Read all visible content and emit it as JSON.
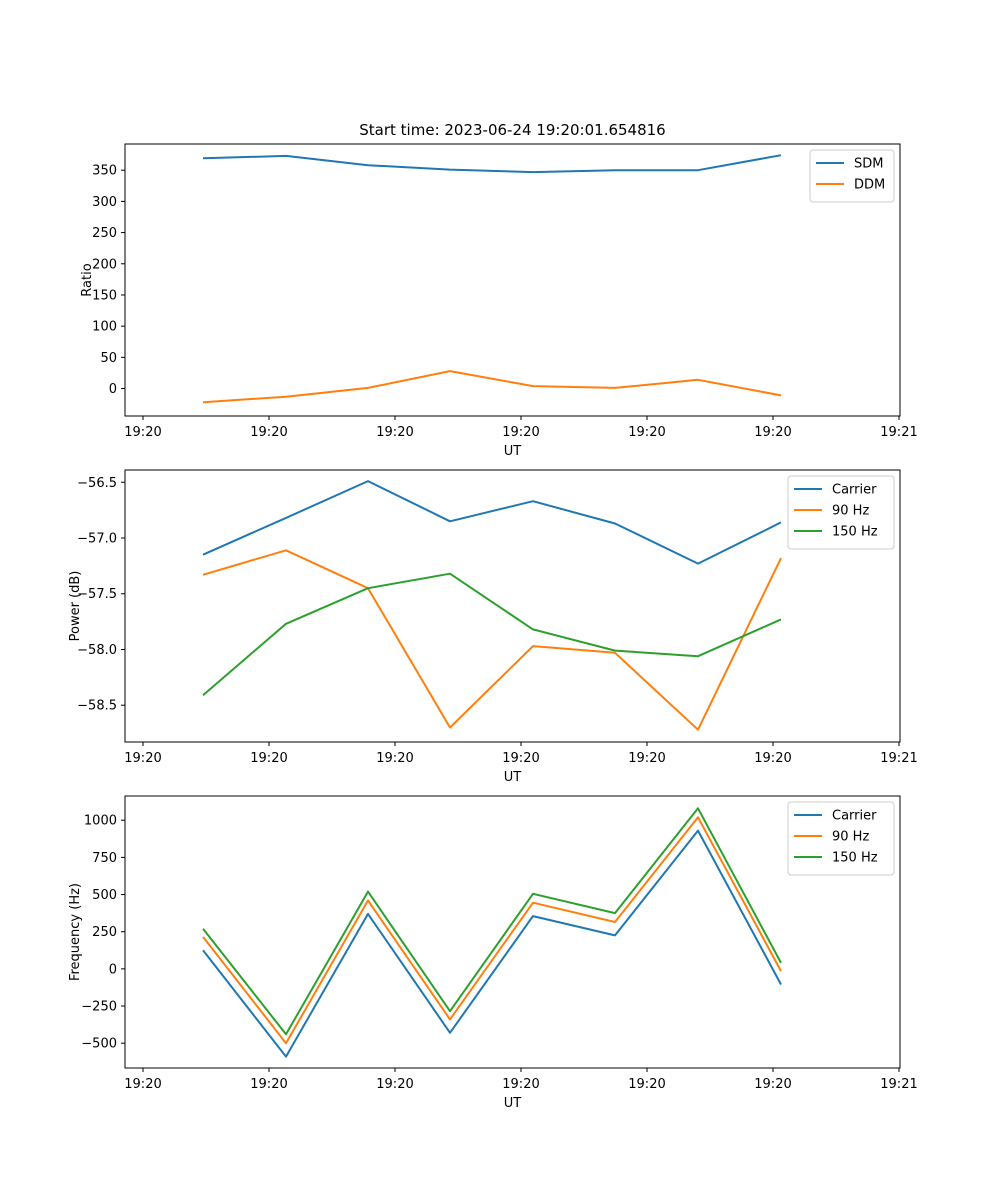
{
  "title": "Start time: 2023-06-24 19:20:01.654816",
  "chart_data": [
    {
      "type": "line",
      "xlabel": "UT",
      "ylabel": "Ratio",
      "x_tick_labels": [
        "19:20",
        "19:20",
        "19:20",
        "19:20",
        "19:20",
        "19:20",
        "19:21"
      ],
      "y_ticks": [
        0,
        50,
        100,
        150,
        200,
        250,
        300,
        350
      ],
      "ylim": [
        -44,
        392
      ],
      "legend_position": "top-right",
      "series": [
        {
          "name": "SDM",
          "color": "#1f77b4",
          "values": [
            369,
            373,
            358,
            351,
            347,
            350,
            350,
            374
          ]
        },
        {
          "name": "DDM",
          "color": "#ff7f0e",
          "values": [
            -22,
            -13,
            1,
            28,
            4,
            1,
            14,
            -11
          ]
        }
      ]
    },
    {
      "type": "line",
      "xlabel": "UT",
      "ylabel": "Power (dB)",
      "x_tick_labels": [
        "19:20",
        "19:20",
        "19:20",
        "19:20",
        "19:20",
        "19:20",
        "19:21"
      ],
      "y_ticks": [
        -58.5,
        -58.0,
        -57.5,
        -57.0,
        -56.5
      ],
      "y_tick_labels": [
        "−58.5",
        "−58.0",
        "−57.5",
        "−57.0",
        "−56.5"
      ],
      "ylim": [
        -58.83,
        -56.39
      ],
      "legend_position": "top-right",
      "series": [
        {
          "name": "Carrier",
          "color": "#1f77b4",
          "values": [
            -57.15,
            -56.82,
            -56.49,
            -56.85,
            -56.67,
            -56.87,
            -57.23,
            -56.86
          ]
        },
        {
          "name": "90 Hz",
          "color": "#ff7f0e",
          "values": [
            -57.33,
            -57.11,
            -57.45,
            -58.7,
            -57.97,
            -58.03,
            -58.72,
            -57.18
          ]
        },
        {
          "name": "150 Hz",
          "color": "#2ca02c",
          "values": [
            -58.41,
            -57.77,
            -57.45,
            -57.32,
            -57.82,
            -58.01,
            -58.06,
            -57.73
          ]
        }
      ]
    },
    {
      "type": "line",
      "xlabel": "UT",
      "ylabel": "Frequency (Hz)",
      "x_tick_labels": [
        "19:20",
        "19:20",
        "19:20",
        "19:20",
        "19:20",
        "19:20",
        "19:21"
      ],
      "y_ticks": [
        -500,
        -250,
        0,
        250,
        500,
        750,
        1000
      ],
      "y_tick_labels": [
        "−500",
        "−250",
        "0",
        "250",
        "500",
        "750",
        "1000"
      ],
      "ylim": [
        -667,
        1163
      ],
      "legend_position": "top-right",
      "series": [
        {
          "name": "Carrier",
          "color": "#1f77b4",
          "values": [
            125,
            -590,
            370,
            -430,
            355,
            225,
            930,
            -105
          ]
        },
        {
          "name": "90 Hz",
          "color": "#ff7f0e",
          "values": [
            215,
            -500,
            460,
            -340,
            445,
            315,
            1020,
            -15
          ]
        },
        {
          "name": "150 Hz",
          "color": "#2ca02c",
          "values": [
            270,
            -440,
            520,
            -285,
            505,
            375,
            1080,
            40
          ]
        }
      ]
    }
  ]
}
